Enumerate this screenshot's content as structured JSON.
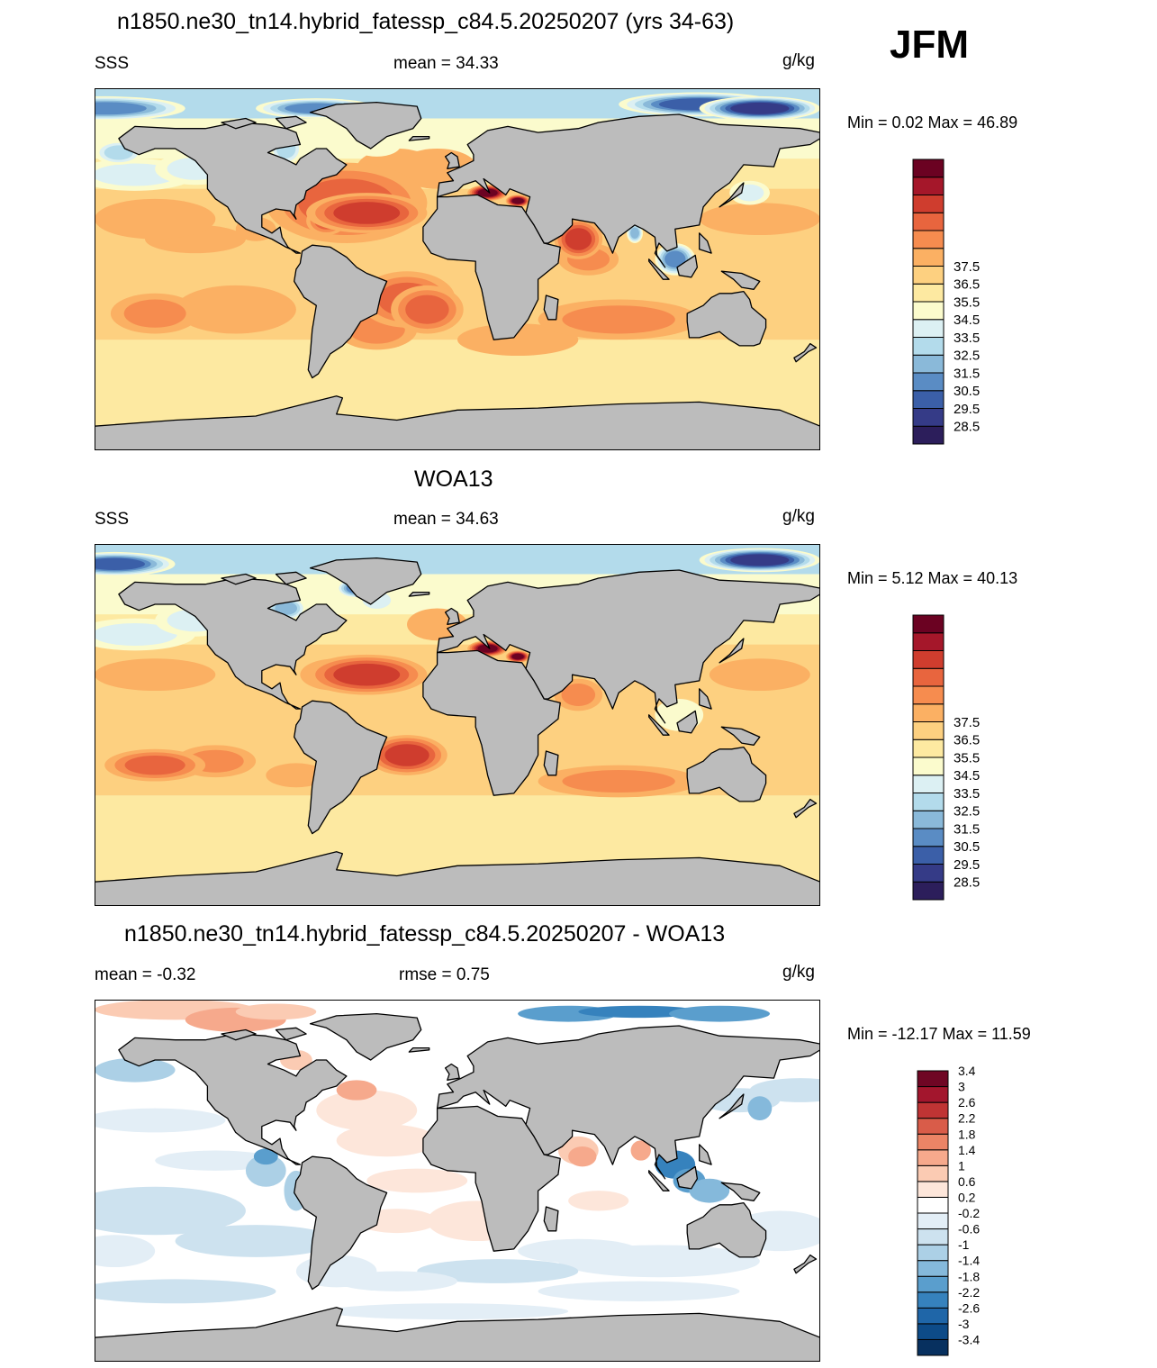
{
  "season": "JFM",
  "panels": [
    {
      "id": "model",
      "title": "n1850.ne30_tn14.hybrid_fatessp_c84.5.20250207 (yrs 34-63)",
      "left_label": "SSS",
      "center_label": "mean =  34.33",
      "right_label": "g/kg",
      "minmax": "Min =   0.02 Max =  46.89",
      "field": "model",
      "colorbar": {
        "colors": [
          "#2c1e5b",
          "#353b87",
          "#3b5fa8",
          "#5a8cc4",
          "#8ab9d9",
          "#b3dbeb",
          "#dcf0f3",
          "#fbfbcd",
          "#fde9a1",
          "#fdd080",
          "#fbb063",
          "#f68c4f",
          "#e8653e",
          "#cf3d2e",
          "#a5172a",
          "#6b0222"
        ],
        "labels": [
          "28.5",
          "29.5",
          "30.5",
          "31.5",
          "32.5",
          "33.5",
          "34.5",
          "35.5",
          "36.5",
          "37.5"
        ]
      }
    },
    {
      "id": "obs",
      "title": "WOA13",
      "left_label": "SSS",
      "center_label": "mean =  34.63",
      "right_label": "g/kg",
      "minmax": "Min =   5.12 Max =  40.13",
      "field": "obs",
      "colorbar": {
        "colors": [
          "#2c1e5b",
          "#353b87",
          "#3b5fa8",
          "#5a8cc4",
          "#8ab9d9",
          "#b3dbeb",
          "#dcf0f3",
          "#fbfbcd",
          "#fde9a1",
          "#fdd080",
          "#fbb063",
          "#f68c4f",
          "#e8653e",
          "#cf3d2e",
          "#a5172a",
          "#6b0222"
        ],
        "labels": [
          "28.5",
          "29.5",
          "30.5",
          "31.5",
          "32.5",
          "33.5",
          "34.5",
          "35.5",
          "36.5",
          "37.5"
        ]
      }
    },
    {
      "id": "diff",
      "title": "n1850.ne30_tn14.hybrid_fatessp_c84.5.20250207 - WOA13",
      "left_label": "mean =  -0.32",
      "center_label": "rmse =   0.75",
      "right_label": "g/kg",
      "minmax": "Min = -12.17 Max =  11.59",
      "field": "diff",
      "colorbar": {
        "colors": [
          "#07305f",
          "#0d4b88",
          "#1f66a8",
          "#3682bd",
          "#5a9ecd",
          "#85b9db",
          "#acd0e6",
          "#cde2ef",
          "#e3eef6",
          "#ffffff",
          "#fde6da",
          "#fbcbb3",
          "#f6a98c",
          "#ec8466",
          "#d95c49",
          "#c03434",
          "#a3162d",
          "#6f0624"
        ],
        "labels": [
          "-3.4",
          "-3",
          "-2.6",
          "-2.2",
          "-1.8",
          "-1.4",
          "-1",
          "-0.6",
          "-0.2",
          "0.2",
          "0.6",
          "1",
          "1.4",
          "1.8",
          "2.2",
          "2.6",
          "3",
          "3.4"
        ]
      }
    }
  ]
}
